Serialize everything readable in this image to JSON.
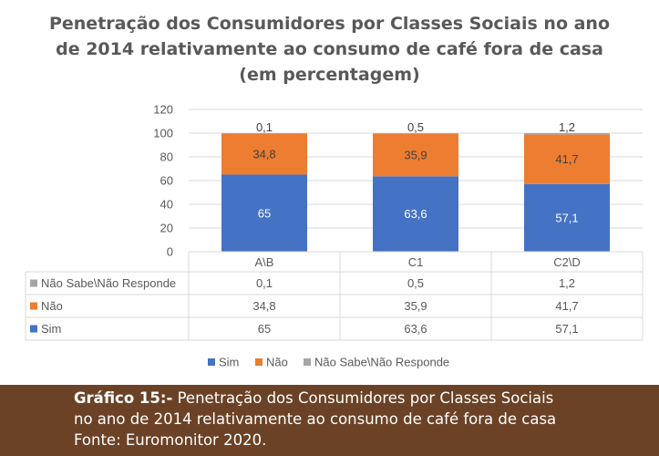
{
  "chart_data": {
    "type": "bar",
    "stacked": true,
    "title": "Penetração dos Consumidores por Classes Sociais no ano de 2014 relativamente ao consumo de café fora de casa (em percentagem)",
    "title_lines": [
      "Penetração dos Consumidores por Classes Sociais no ano",
      "de 2014 relativamente ao consumo de café fora de casa",
      "(em percentagem)"
    ],
    "categories": [
      "A\\B",
      "C1",
      "C2\\D"
    ],
    "ylim": [
      0,
      120
    ],
    "yticks": [
      "0",
      "20",
      "40",
      "60",
      "80",
      "100",
      "120"
    ],
    "grid": true,
    "legend_position": "bottom",
    "series": [
      {
        "name": "Sim",
        "values": [
          65,
          63.6,
          57.1
        ],
        "labels": [
          "65",
          "63,6",
          "57,1"
        ],
        "color": "#4472c4"
      },
      {
        "name": "Não",
        "values": [
          34.8,
          35.9,
          41.7
        ],
        "labels": [
          "34,8",
          "35,9",
          "41,7"
        ],
        "color": "#ed7d31"
      },
      {
        "name": "Não Sabe\\Não Responde",
        "values": [
          0.1,
          0.5,
          1.2
        ],
        "labels": [
          "0,1",
          "0,5",
          "1,2"
        ],
        "color": "#a5a5a5"
      }
    ]
  },
  "caption": {
    "label": "Gráfico 15:-",
    "line1": " Penetração dos Consumidores por Classes Sociais",
    "line2": "no ano de 2014 relativamente ao consumo de café fora de casa",
    "line3": "Fonte: Euromonitor 2020."
  },
  "colors": {
    "caption_background": "#6b4226",
    "sim": "#4472c4",
    "nao": "#ed7d31",
    "ns": "#a5a5a5"
  }
}
